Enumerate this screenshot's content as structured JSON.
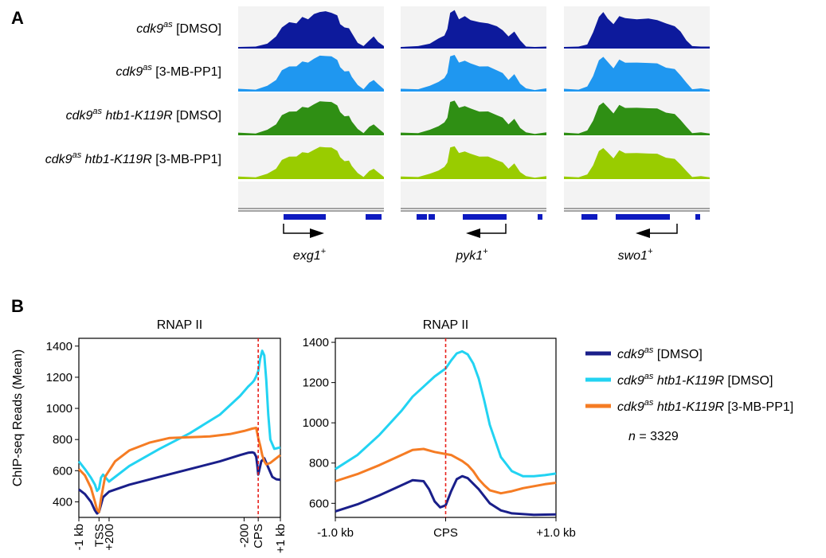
{
  "panel_a": {
    "label": "A",
    "tracks": [
      {
        "pre": "cdk9",
        "sup": "as",
        "mid": "",
        "post": " [DMSO]",
        "color": "#0d1a9c"
      },
      {
        "pre": "cdk9",
        "sup": "as",
        "mid": "",
        "post": " [3-MB-PP1]",
        "color": "#1f97f0"
      },
      {
        "pre": "cdk9",
        "sup": "as",
        "mid": " htb1-K119R",
        "post": " [DMSO]",
        "color": "#2f8f14"
      },
      {
        "pre": "cdk9",
        "sup": "as",
        "mid": " htb1-K119R",
        "post": " [3-MB-PP1]",
        "color": "#99cc00"
      }
    ],
    "genes": [
      {
        "name": "exg1",
        "sup": "+",
        "direction": "right"
      },
      {
        "name": "pyk1",
        "sup": "+",
        "direction": "left"
      },
      {
        "name": "swo1",
        "sup": "+",
        "direction": "left"
      }
    ]
  },
  "panel_b": {
    "label": "B",
    "ylabel": "ChIP-seq Reads (Mean)",
    "n_label": {
      "prefix": "n",
      "text": " = 3329"
    },
    "legend": [
      {
        "pre": "cdk9",
        "sup": "as",
        "mid": "",
        "post": " [DMSO]",
        "color": "#1a1f8a"
      },
      {
        "pre": "cdk9",
        "sup": "as",
        "mid": " htb1-K119R",
        "post": " [DMSO]",
        "color": "#22d3f2"
      },
      {
        "pre": "cdk9",
        "sup": "as",
        "mid": " htb1-K119R",
        "post": " [3-MB-PP1]",
        "color": "#f57c24"
      }
    ]
  },
  "chart_data": [
    {
      "type": "line",
      "title": "RNAP II",
      "ylabel": "ChIP-seq Reads (Mean)",
      "ylim": [
        300,
        1450
      ],
      "yticks": [
        400,
        600,
        800,
        1000,
        1200,
        1400
      ],
      "xlim": [
        0,
        100
      ],
      "xtick_positions": [
        0,
        10,
        15,
        82,
        89,
        100
      ],
      "xtick_labels": [
        "-1 kb",
        "TSS",
        "+200",
        "-200",
        "CPS",
        "+1 kb"
      ],
      "vline_x": 89,
      "series": [
        {
          "name": "cdk9as [DMSO]",
          "color": "#1a1f8a",
          "x": [
            0,
            3,
            6,
            8,
            9,
            10,
            12,
            15,
            25,
            40,
            55,
            70,
            80,
            84,
            86,
            87,
            88,
            88.5,
            89,
            89.5,
            90.5,
            92,
            94,
            96,
            98,
            100
          ],
          "y": [
            480,
            450,
            400,
            345,
            325,
            335,
            430,
            465,
            510,
            560,
            610,
            660,
            700,
            715,
            718,
            714,
            690,
            640,
            575,
            600,
            660,
            680,
            620,
            560,
            545,
            542
          ]
        },
        {
          "name": "cdk9as htb1-K119R [DMSO]",
          "color": "#22d3f2",
          "x": [
            0,
            3,
            6,
            8,
            9,
            10,
            11,
            12,
            15,
            25,
            40,
            55,
            70,
            80,
            84,
            86,
            87,
            88,
            89,
            90,
            91,
            92,
            93,
            94,
            95,
            97,
            100
          ],
          "y": [
            660,
            610,
            555,
            510,
            470,
            485,
            555,
            575,
            530,
            630,
            740,
            840,
            960,
            1080,
            1140,
            1165,
            1180,
            1205,
            1240,
            1320,
            1370,
            1340,
            1180,
            960,
            800,
            740,
            750
          ]
        },
        {
          "name": "cdk9as htb1-K119R [3-MB-PP1]",
          "color": "#f57c24",
          "x": [
            0,
            3,
            6,
            8,
            9,
            10,
            11,
            13,
            18,
            25,
            35,
            45,
            55,
            65,
            75,
            82,
            86,
            88,
            89,
            90,
            91,
            92,
            93,
            95,
            97,
            100
          ],
          "y": [
            610,
            570,
            490,
            400,
            350,
            335,
            420,
            560,
            660,
            730,
            780,
            810,
            815,
            820,
            835,
            855,
            870,
            875,
            810,
            760,
            700,
            660,
            640,
            650,
            670,
            700
          ]
        }
      ]
    },
    {
      "type": "line",
      "title": "RNAP II",
      "ylim": [
        530,
        1420
      ],
      "yticks": [
        600,
        800,
        1000,
        1200,
        1400
      ],
      "xlim": [
        -1.0,
        1.0
      ],
      "xtick_positions": [
        -1.0,
        0,
        1.0
      ],
      "xtick_labels": [
        "-1.0 kb",
        "CPS",
        "+1.0 kb"
      ],
      "vline_x": 0,
      "series": [
        {
          "name": "cdk9as [DMSO]",
          "color": "#1a1f8a",
          "x": [
            -1.0,
            -0.8,
            -0.6,
            -0.4,
            -0.3,
            -0.2,
            -0.15,
            -0.1,
            -0.05,
            0.0,
            0.05,
            0.1,
            0.15,
            0.2,
            0.3,
            0.4,
            0.5,
            0.6,
            0.8,
            1.0
          ],
          "y": [
            560,
            595,
            640,
            690,
            715,
            710,
            670,
            610,
            580,
            590,
            660,
            720,
            735,
            725,
            670,
            600,
            565,
            550,
            543,
            545
          ]
        },
        {
          "name": "cdk9as htb1-K119R [DMSO]",
          "color": "#22d3f2",
          "x": [
            -1.0,
            -0.8,
            -0.6,
            -0.4,
            -0.3,
            -0.2,
            -0.1,
            0.0,
            0.05,
            0.1,
            0.15,
            0.2,
            0.25,
            0.3,
            0.35,
            0.4,
            0.5,
            0.6,
            0.7,
            0.8,
            0.9,
            1.0
          ],
          "y": [
            770,
            840,
            940,
            1060,
            1130,
            1180,
            1230,
            1270,
            1310,
            1345,
            1355,
            1340,
            1295,
            1220,
            1110,
            990,
            830,
            760,
            735,
            735,
            740,
            748
          ]
        },
        {
          "name": "cdk9as htb1-K119R [3-MB-PP1]",
          "color": "#f57c24",
          "x": [
            -1.0,
            -0.8,
            -0.6,
            -0.4,
            -0.3,
            -0.2,
            -0.1,
            0.0,
            0.05,
            0.1,
            0.15,
            0.2,
            0.25,
            0.3,
            0.35,
            0.4,
            0.5,
            0.6,
            0.7,
            0.8,
            0.9,
            1.0
          ],
          "y": [
            710,
            745,
            790,
            840,
            865,
            870,
            855,
            845,
            840,
            825,
            810,
            790,
            760,
            720,
            690,
            665,
            650,
            660,
            675,
            685,
            695,
            702
          ]
        }
      ]
    }
  ]
}
